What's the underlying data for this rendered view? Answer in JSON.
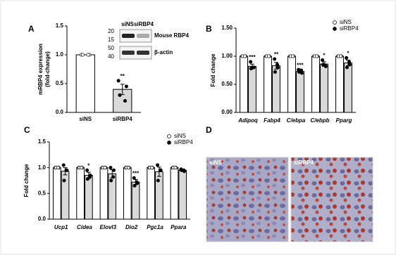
{
  "chart_data": [
    {
      "type": "bar",
      "panel": "A",
      "ylabel": [
        "mRBP4 expression",
        "(fold-change)"
      ],
      "categories": [
        "siNS",
        "siRBP4"
      ],
      "values": [
        1.0,
        0.4
      ],
      "errors": [
        0.0,
        0.09
      ],
      "colors": [
        "#ffffff",
        "#d9d9d9"
      ],
      "point_fills": [
        "#ffffff",
        "#000000"
      ],
      "points": [
        [
          1.0,
          1.0,
          1.0,
          1.0
        ],
        [
          0.55,
          0.45,
          0.3,
          0.2
        ]
      ],
      "annotations": [
        null,
        "**"
      ],
      "ylim": [
        0,
        1.5
      ],
      "yticks": [
        {
          "value": 0,
          "label": "0.0"
        },
        {
          "value": 0.5,
          "label": "0.5"
        },
        {
          "value": 1,
          "label": "1.0"
        },
        {
          "value": 1.5,
          "label": "1.5"
        }
      ],
      "blot": {
        "lanes": [
          "siNS",
          "siRBP4"
        ],
        "rows": [
          {
            "label": "Mouse RBP4",
            "markers": [
              "20",
              "15"
            ]
          },
          {
            "label": "β-actin",
            "markers": [
              "50",
              "40"
            ]
          }
        ]
      }
    },
    {
      "type": "grouped_bar",
      "panel": "B",
      "ylabel": [
        "Fold change"
      ],
      "italic": true,
      "categories": [
        "Adipoq",
        "Fabp4",
        "C/ebpa",
        "C/ebpb",
        "Pparg"
      ],
      "series": [
        {
          "name": "siNS",
          "color": "#ffffff",
          "point_fill": "#ffffff",
          "values": [
            1.0,
            1.0,
            1.0,
            1.0,
            1.0
          ],
          "errors": [
            0.02,
            0.02,
            0.02,
            0.02,
            0.02
          ],
          "points": [
            [
              1,
              1,
              1,
              1
            ],
            [
              1,
              1,
              1,
              1
            ],
            [
              1,
              1,
              1,
              1
            ],
            [
              1,
              1,
              1,
              1
            ],
            [
              1,
              1,
              1,
              1
            ]
          ]
        },
        {
          "name": "siRBP4",
          "color": "#d9d9d9",
          "point_fill": "#000000",
          "values": [
            0.82,
            0.83,
            0.73,
            0.86,
            0.88
          ],
          "errors": [
            0.04,
            0.06,
            0.03,
            0.04,
            0.05
          ],
          "points": [
            [
              0.9,
              0.8,
              0.78,
              0.8
            ],
            [
              0.95,
              0.8,
              0.72,
              0.85
            ],
            [
              0.76,
              0.7,
              0.72,
              0.75
            ],
            [
              0.93,
              0.82,
              0.85,
              0.84
            ],
            [
              0.97,
              0.85,
              0.8,
              0.9
            ]
          ]
        }
      ],
      "annotations": [
        "***",
        "**",
        "***",
        "*",
        "*"
      ],
      "ylim": [
        0,
        1.5
      ],
      "yticks": [
        {
          "value": 0,
          "label": "0.00"
        },
        {
          "value": 0.5,
          "label": "0.50"
        },
        {
          "value": 1,
          "label": "1.00"
        },
        {
          "value": 1.5,
          "label": "1.50"
        }
      ],
      "legend": "upper right"
    },
    {
      "type": "grouped_bar",
      "panel": "C",
      "ylabel": [
        "Fold change"
      ],
      "italic": true,
      "categories": [
        "Ucp1",
        "Cidea",
        "Elovl3",
        "Dio2",
        "Pgc1a",
        "Ppara"
      ],
      "series": [
        {
          "name": "siNS",
          "color": "#ffffff",
          "point_fill": "#ffffff",
          "values": [
            1.0,
            1.0,
            1.0,
            1.0,
            1.0,
            1.0
          ],
          "errors": [
            0.02,
            0.02,
            0.02,
            0.02,
            0.02,
            0.02
          ],
          "points": [
            [
              1,
              1,
              1,
              1
            ],
            [
              1,
              1,
              1,
              1
            ],
            [
              1,
              1,
              1,
              1
            ],
            [
              1,
              1,
              1,
              1
            ],
            [
              1,
              1,
              1,
              1
            ],
            [
              1,
              1,
              1,
              1
            ]
          ]
        },
        {
          "name": "siRBP4",
          "color": "#d9d9d9",
          "point_fill": "#000000",
          "values": [
            0.93,
            0.85,
            0.88,
            0.72,
            0.92,
            0.95
          ],
          "errors": [
            0.07,
            0.06,
            0.08,
            0.05,
            0.09,
            0.02
          ],
          "points": [
            [
              1.05,
              0.95,
              0.75,
              0.95
            ],
            [
              0.95,
              0.85,
              0.78,
              0.82
            ],
            [
              1.0,
              0.95,
              0.75,
              0.82
            ],
            [
              0.8,
              0.7,
              0.65,
              0.72
            ],
            [
              1.05,
              0.95,
              0.75,
              0.95
            ],
            [
              0.97,
              0.93,
              0.95,
              0.95
            ]
          ]
        }
      ],
      "annotations": [
        null,
        "*",
        null,
        "***",
        null,
        null
      ],
      "ylim": [
        0,
        1.5
      ],
      "yticks": [
        {
          "value": 0,
          "label": "0.0"
        },
        {
          "value": 0.5,
          "label": "0.5"
        },
        {
          "value": 1,
          "label": "1.0"
        },
        {
          "value": 1.5,
          "label": "1.5"
        }
      ],
      "legend": "upper right"
    }
  ],
  "panel_d": {
    "label": "D",
    "images": [
      "siNS",
      "siRBP4"
    ]
  }
}
